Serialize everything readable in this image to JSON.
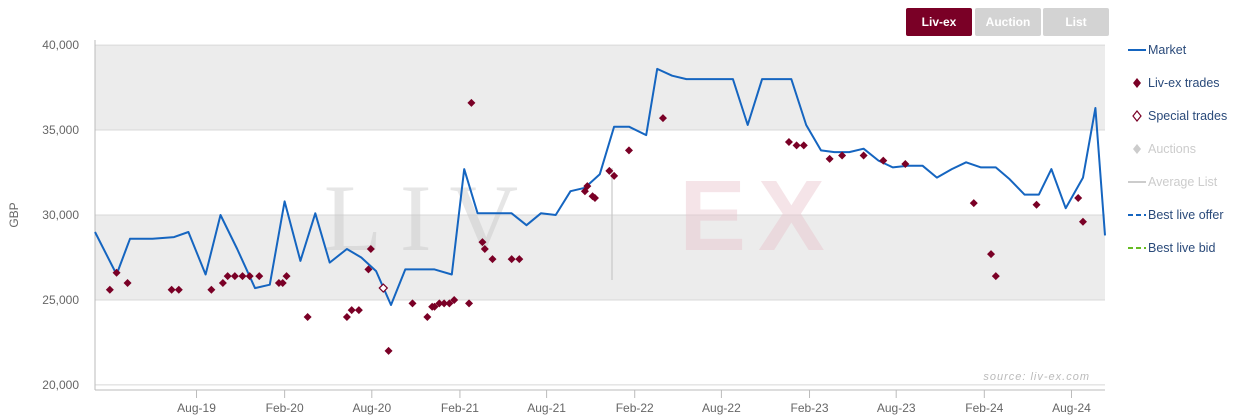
{
  "toggles": [
    {
      "label": "Liv-ex",
      "active": true
    },
    {
      "label": "Auction",
      "active": false
    },
    {
      "label": "List",
      "active": false
    }
  ],
  "watermark": {
    "left": "LIV",
    "right": "EX",
    "source": "source: liv-ex.com"
  },
  "legend": [
    {
      "label": "Market",
      "symbol": "line",
      "color": "#1565c0",
      "muted": false
    },
    {
      "label": "Liv-ex trades",
      "symbol": "diamond",
      "color": "#7a0026",
      "muted": false
    },
    {
      "label": "Special trades",
      "symbol": "diamond-open",
      "color": "#7a0026",
      "muted": false
    },
    {
      "label": "Auctions",
      "symbol": "diamond",
      "color": "#cccccc",
      "muted": true
    },
    {
      "label": "Average List",
      "symbol": "line",
      "color": "#cccccc",
      "muted": true
    },
    {
      "label": "Best live offer",
      "symbol": "dash",
      "color": "#1565c0",
      "muted": false
    },
    {
      "label": "Best live bid",
      "symbol": "dash",
      "color": "#66bb22",
      "muted": false
    }
  ],
  "chart_data": {
    "type": "line",
    "ylabel": "GBP",
    "xlabel": "",
    "ylim": [
      19700,
      40300
    ],
    "xlim": [
      "2019-01-01",
      "2024-10-10"
    ],
    "yticks": [
      20000,
      25000,
      30000,
      35000,
      40000
    ],
    "ytick_labels": [
      "20,000",
      "25,000",
      "30,000",
      "35,000",
      "40,000"
    ],
    "xticks": [
      {
        "date": "2019-08-01",
        "label": "Aug-19"
      },
      {
        "date": "2020-02-01",
        "label": "Feb-20"
      },
      {
        "date": "2020-08-01",
        "label": "Aug-20"
      },
      {
        "date": "2021-02-01",
        "label": "Feb-21"
      },
      {
        "date": "2021-08-01",
        "label": "Aug-21"
      },
      {
        "date": "2022-02-01",
        "label": "Feb-22"
      },
      {
        "date": "2022-08-01",
        "label": "Aug-22"
      },
      {
        "date": "2023-02-01",
        "label": "Feb-23"
      },
      {
        "date": "2023-08-01",
        "label": "Aug-23"
      },
      {
        "date": "2024-02-01",
        "label": "Feb-24"
      },
      {
        "date": "2024-08-01",
        "label": "Aug-24"
      }
    ],
    "bands": [
      [
        25000,
        30000
      ],
      [
        35000,
        40000
      ]
    ],
    "series": [
      {
        "name": "Market",
        "kind": "line",
        "color": "#1565c0",
        "points": [
          [
            "2019-01-01",
            29000
          ],
          [
            "2019-02-15",
            26500
          ],
          [
            "2019-03-15",
            28600
          ],
          [
            "2019-05-01",
            28600
          ],
          [
            "2019-06-15",
            28700
          ],
          [
            "2019-07-15",
            29000
          ],
          [
            "2019-08-20",
            26500
          ],
          [
            "2019-09-20",
            30000
          ],
          [
            "2019-10-25",
            28000
          ],
          [
            "2019-12-01",
            25700
          ],
          [
            "2020-01-01",
            25900
          ],
          [
            "2020-02-01",
            30800
          ],
          [
            "2020-03-05",
            27300
          ],
          [
            "2020-04-05",
            30100
          ],
          [
            "2020-05-05",
            27200
          ],
          [
            "2020-06-10",
            28000
          ],
          [
            "2020-07-10",
            27500
          ],
          [
            "2020-08-10",
            26700
          ],
          [
            "2020-09-10",
            24700
          ],
          [
            "2020-10-10",
            26800
          ],
          [
            "2020-11-10",
            26800
          ],
          [
            "2020-12-10",
            26800
          ],
          [
            "2021-01-15",
            26500
          ],
          [
            "2021-02-10",
            32700
          ],
          [
            "2021-03-10",
            30100
          ],
          [
            "2021-04-10",
            30100
          ],
          [
            "2021-05-20",
            30100
          ],
          [
            "2021-06-20",
            29400
          ],
          [
            "2021-07-20",
            30100
          ],
          [
            "2021-08-20",
            30000
          ],
          [
            "2021-09-20",
            31400
          ],
          [
            "2021-10-20",
            31600
          ],
          [
            "2021-11-20",
            32400
          ],
          [
            "2021-12-20",
            35200
          ],
          [
            "2022-01-20",
            35200
          ],
          [
            "2022-02-25",
            34700
          ],
          [
            "2022-03-20",
            38600
          ],
          [
            "2022-04-20",
            38200
          ],
          [
            "2022-05-20",
            38000
          ],
          [
            "2022-06-20",
            38000
          ],
          [
            "2022-07-20",
            38000
          ],
          [
            "2022-08-25",
            38000
          ],
          [
            "2022-09-25",
            35300
          ],
          [
            "2022-10-25",
            38000
          ],
          [
            "2022-11-25",
            38000
          ],
          [
            "2022-12-25",
            38000
          ],
          [
            "2023-01-25",
            35300
          ],
          [
            "2023-02-25",
            33800
          ],
          [
            "2023-03-25",
            33700
          ],
          [
            "2023-04-25",
            33700
          ],
          [
            "2023-05-25",
            33900
          ],
          [
            "2023-06-25",
            33200
          ],
          [
            "2023-07-25",
            32800
          ],
          [
            "2023-08-25",
            32900
          ],
          [
            "2023-09-25",
            32900
          ],
          [
            "2023-10-25",
            32200
          ],
          [
            "2023-11-25",
            32700
          ],
          [
            "2023-12-25",
            33100
          ],
          [
            "2024-01-25",
            32800
          ],
          [
            "2024-02-25",
            32800
          ],
          [
            "2024-03-25",
            32100
          ],
          [
            "2024-04-25",
            31200
          ],
          [
            "2024-05-25",
            31200
          ],
          [
            "2024-06-20",
            32700
          ],
          [
            "2024-07-20",
            30400
          ],
          [
            "2024-08-25",
            32200
          ],
          [
            "2024-09-20",
            36300
          ],
          [
            "2024-10-10",
            28800
          ]
        ]
      },
      {
        "name": "Liv-ex trades",
        "kind": "diamond",
        "color": "#7a0026",
        "points": [
          [
            "2019-02-01",
            25600
          ],
          [
            "2019-02-15",
            26600
          ],
          [
            "2019-03-10",
            26000
          ],
          [
            "2019-06-10",
            25600
          ],
          [
            "2019-06-25",
            25600
          ],
          [
            "2019-09-01",
            25600
          ],
          [
            "2019-09-25",
            26000
          ],
          [
            "2019-10-05",
            26400
          ],
          [
            "2019-10-20",
            26400
          ],
          [
            "2019-11-05",
            26400
          ],
          [
            "2019-11-20",
            26400
          ],
          [
            "2019-12-10",
            26400
          ],
          [
            "2020-01-20",
            26000
          ],
          [
            "2020-01-28",
            26000
          ],
          [
            "2020-02-05",
            26400
          ],
          [
            "2020-03-20",
            24000
          ],
          [
            "2020-06-10",
            24000
          ],
          [
            "2020-06-20",
            24400
          ],
          [
            "2020-07-05",
            24400
          ],
          [
            "2020-07-25",
            26800
          ],
          [
            "2020-07-30",
            28000
          ],
          [
            "2020-09-05",
            22000
          ],
          [
            "2020-10-25",
            24800
          ],
          [
            "2020-11-25",
            24000
          ],
          [
            "2020-12-05",
            24600
          ],
          [
            "2020-12-10",
            24600
          ],
          [
            "2020-12-20",
            24800
          ],
          [
            "2020-12-30",
            24800
          ],
          [
            "2021-01-10",
            24800
          ],
          [
            "2021-01-20",
            25000
          ],
          [
            "2021-02-20",
            24800
          ],
          [
            "2021-02-25",
            36600
          ],
          [
            "2021-03-20",
            28400
          ],
          [
            "2021-03-25",
            28000
          ],
          [
            "2021-04-10",
            27400
          ],
          [
            "2021-05-20",
            27400
          ],
          [
            "2021-06-05",
            27400
          ],
          [
            "2021-10-20",
            31400
          ],
          [
            "2021-10-25",
            31700
          ],
          [
            "2021-11-05",
            31100
          ],
          [
            "2021-11-10",
            31000
          ],
          [
            "2021-12-10",
            32600
          ],
          [
            "2021-12-20",
            32300
          ],
          [
            "2022-01-20",
            33800
          ],
          [
            "2022-04-01",
            35700
          ],
          [
            "2022-12-20",
            34300
          ],
          [
            "2023-01-05",
            34100
          ],
          [
            "2023-01-20",
            34100
          ],
          [
            "2023-03-15",
            33300
          ],
          [
            "2023-04-10",
            33500
          ],
          [
            "2023-05-25",
            33500
          ],
          [
            "2023-07-05",
            33200
          ],
          [
            "2023-08-20",
            33000
          ],
          [
            "2024-01-10",
            30700
          ],
          [
            "2024-02-15",
            27700
          ],
          [
            "2024-02-25",
            26400
          ],
          [
            "2024-05-20",
            30600
          ],
          [
            "2024-08-15",
            31000
          ],
          [
            "2024-08-25",
            29600
          ]
        ]
      },
      {
        "name": "Special trades",
        "kind": "diamond-open",
        "color": "#7a0026",
        "points": [
          [
            "2020-08-25",
            25700
          ]
        ]
      }
    ]
  }
}
